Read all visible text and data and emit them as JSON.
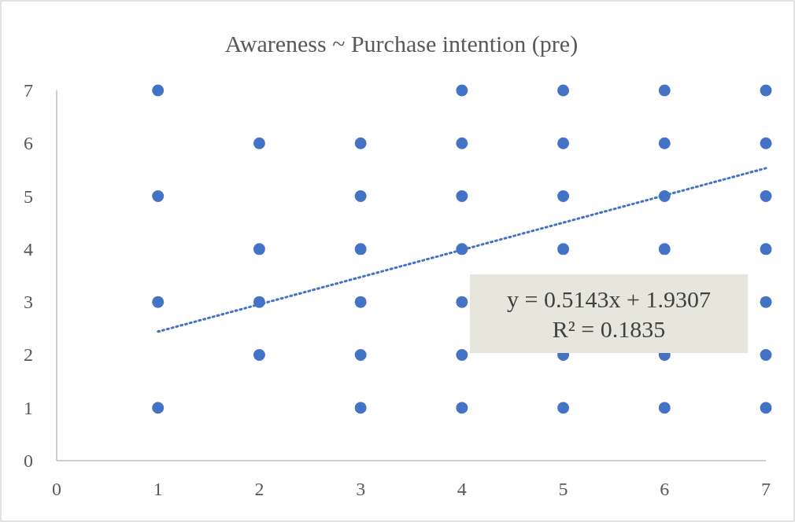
{
  "chart_data": {
    "type": "scatter",
    "title": "Awareness ~ Purchase intention (pre)",
    "xlim": [
      0,
      7
    ],
    "xticks": [
      0,
      1,
      2,
      3,
      4,
      5,
      6,
      7
    ],
    "ylim": [
      0,
      7
    ],
    "yticks": [
      0,
      1,
      2,
      3,
      4,
      5,
      6,
      7
    ],
    "line_style": "dotted",
    "series": [
      {
        "marker": "circle",
        "color": "#4472c4",
        "x": [
          1,
          1,
          1,
          1,
          2,
          2,
          2,
          2,
          3,
          3,
          3,
          3,
          3,
          3,
          4,
          4,
          4,
          4,
          4,
          4,
          4,
          5,
          5,
          5,
          5,
          5,
          5,
          6,
          6,
          6,
          6,
          6,
          6,
          7,
          7,
          7,
          7,
          7,
          7,
          7
        ],
        "values": [
          7,
          5,
          3,
          1,
          6,
          4,
          3,
          2,
          6,
          5,
          4,
          3,
          2,
          1,
          7,
          6,
          5,
          4,
          3,
          2,
          1,
          7,
          6,
          5,
          4,
          2,
          1,
          7,
          6,
          5,
          4,
          2,
          1,
          7,
          6,
          5,
          4,
          3,
          2,
          1
        ]
      },
      {
        "type": "line",
        "color": "#4472c4",
        "x": [
          1,
          7
        ],
        "values": [
          2.44,
          5.53
        ]
      }
    ],
    "annotations": [
      "y = 0.5143x + 1.9307",
      "R² = 0.1835"
    ]
  }
}
